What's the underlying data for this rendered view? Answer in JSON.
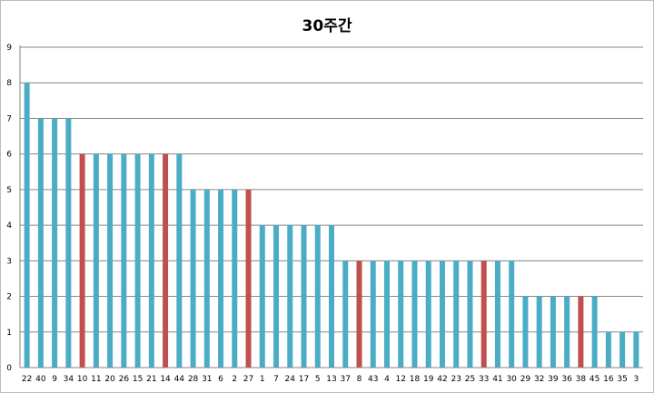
{
  "chart_data": {
    "type": "bar",
    "title": "30주간",
    "xlabel": "",
    "ylabel": "",
    "ylim": [
      0,
      9
    ],
    "yticks": [
      0,
      1,
      2,
      3,
      4,
      5,
      6,
      7,
      8,
      9
    ],
    "grid": true,
    "legend": "none",
    "colors": {
      "default": "#4bacc6",
      "highlight": "#c0504d"
    },
    "categories": [
      "22",
      "40",
      "9",
      "34",
      "10",
      "11",
      "20",
      "26",
      "15",
      "21",
      "14",
      "44",
      "28",
      "31",
      "6",
      "2",
      "27",
      "1",
      "7",
      "24",
      "17",
      "5",
      "13",
      "37",
      "8",
      "43",
      "4",
      "12",
      "18",
      "19",
      "42",
      "23",
      "25",
      "33",
      "41",
      "30",
      "29",
      "32",
      "39",
      "36",
      "38",
      "45",
      "16",
      "35",
      "3"
    ],
    "values": [
      8,
      7,
      7,
      7,
      6,
      6,
      6,
      6,
      6,
      6,
      6,
      6,
      5,
      5,
      5,
      5,
      5,
      4,
      4,
      4,
      4,
      4,
      4,
      3,
      3,
      3,
      3,
      3,
      3,
      3,
      3,
      3,
      3,
      3,
      3,
      3,
      2,
      2,
      2,
      2,
      2,
      2,
      1,
      1,
      1
    ],
    "highlighted": [
      "10",
      "14",
      "27",
      "8",
      "33",
      "38"
    ]
  }
}
